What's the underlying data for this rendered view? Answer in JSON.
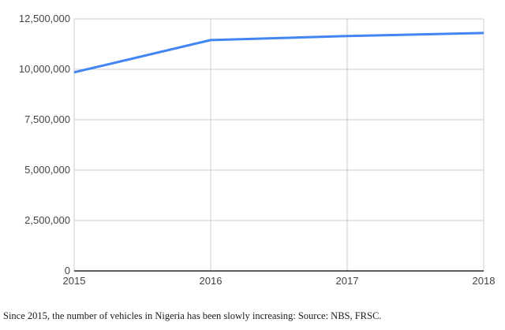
{
  "chart_data": {
    "type": "line",
    "x": [
      "2015",
      "2016",
      "2017",
      "2018"
    ],
    "series": [
      {
        "name": "Number of vehicles in Nigeria",
        "values": [
          9850000,
          11450000,
          11650000,
          11800000
        ]
      }
    ],
    "title": "",
    "xlabel": "",
    "ylabel": "",
    "ylim": [
      0,
      12500000
    ],
    "y_ticks": [
      {
        "value": 0,
        "label": "0"
      },
      {
        "value": 2500000,
        "label": "2,500,000"
      },
      {
        "value": 5000000,
        "label": "5,000,000"
      },
      {
        "value": 7500000,
        "label": "7,500,000"
      },
      {
        "value": 10000000,
        "label": "10,000,000"
      },
      {
        "value": 12500000,
        "label": "12,500,000"
      }
    ],
    "grid": true,
    "legend": "none"
  },
  "caption": "Since 2015, the number of vehicles in Nigeria has been slowly increasing: Source: NBS, FRSC.",
  "colors": {
    "line": "#4285f4",
    "gridline": "#cccccc",
    "baseline": "#5f5f5f",
    "tick_label": "#444444",
    "background": "#ffffff"
  }
}
